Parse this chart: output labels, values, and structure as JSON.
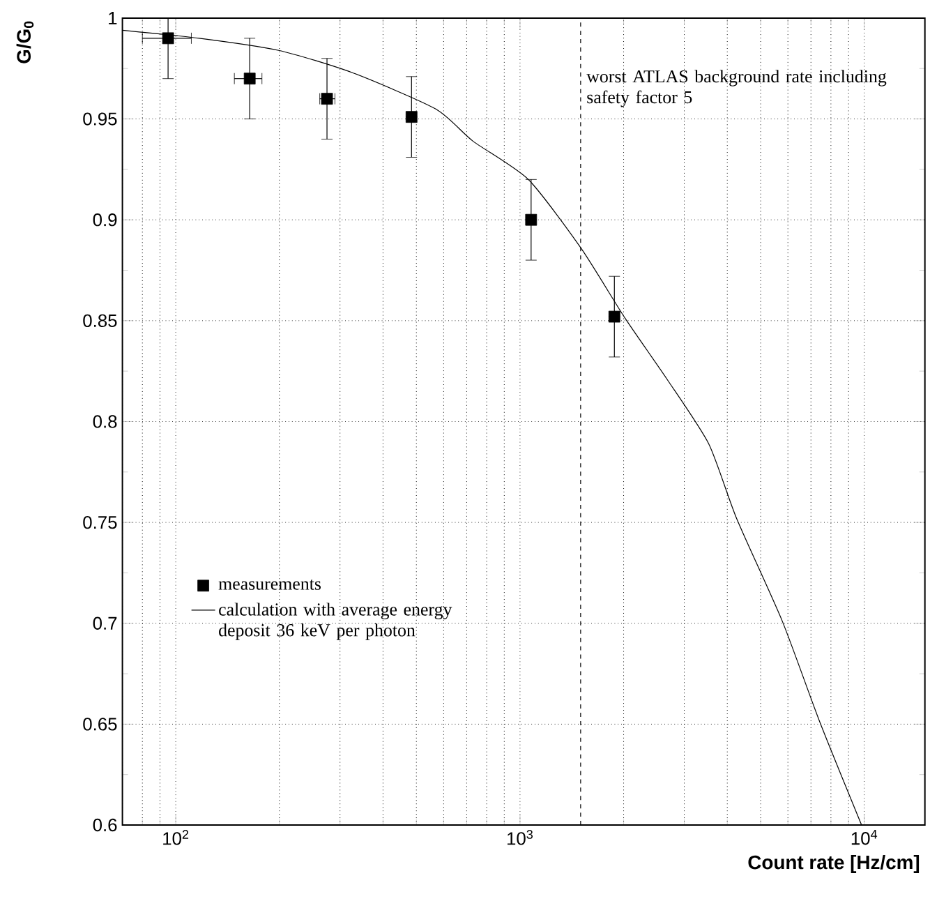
{
  "chart_data": {
    "type": "scatter",
    "xlabel": "Count rate [Hz/cm]",
    "ylabel": "G/G$_{0}$",
    "log": "x",
    "grid": true,
    "legend": "bottom left",
    "xlim": [
      70,
      15000
    ],
    "ylim": [
      0.6,
      1
    ],
    "xticks": [
      {
        "value": 100,
        "label": "10$^{2}$"
      },
      {
        "value": 1000,
        "label": "10$^{3}$"
      },
      {
        "value": 10000,
        "label": "10$^{4}$"
      }
    ],
    "yticks": [
      0.6,
      0.65,
      0.7,
      0.75,
      0.8,
      0.85,
      0.9,
      0.95,
      1
    ],
    "series": [
      {
        "name": "measurements",
        "marker": "square",
        "color": "#000000",
        "x": [
          95,
          164,
          275,
          484,
          1077,
          1880
        ],
        "values": [
          0.99,
          0.97,
          0.96,
          0.951,
          0.9,
          0.852
        ],
        "errors": [
          [
            0.97,
            1.0
          ],
          0.02,
          0.02,
          0.02,
          0.02,
          0.02
        ],
        "xerrors": [
          [
            80,
            111
          ],
          [
            148,
            178
          ],
          [
            262,
            290
          ],
          null,
          null,
          null
        ]
      },
      {
        "name": "calculation with average energy deposit 36 keV per photon",
        "type": "line",
        "marker": "none",
        "line_style": "solid",
        "color": "#000000",
        "x": [
          70,
          117,
          199,
          325,
          568,
          730,
          1057,
          1503,
          2023,
          2673,
          3532,
          4256,
          5781,
          7430,
          9820
        ],
        "values": [
          0.994,
          0.99,
          0.984,
          0.973,
          0.955,
          0.939,
          0.92,
          0.886,
          0.851,
          0.821,
          0.789,
          0.752,
          0.701,
          0.651,
          0.6
        ]
      }
    ],
    "ref_lines": [
      {
        "axis": "x",
        "value": 1500,
        "label": "worst ATLAS background rate including safety factor 5",
        "line_style": "dashed"
      }
    ]
  }
}
